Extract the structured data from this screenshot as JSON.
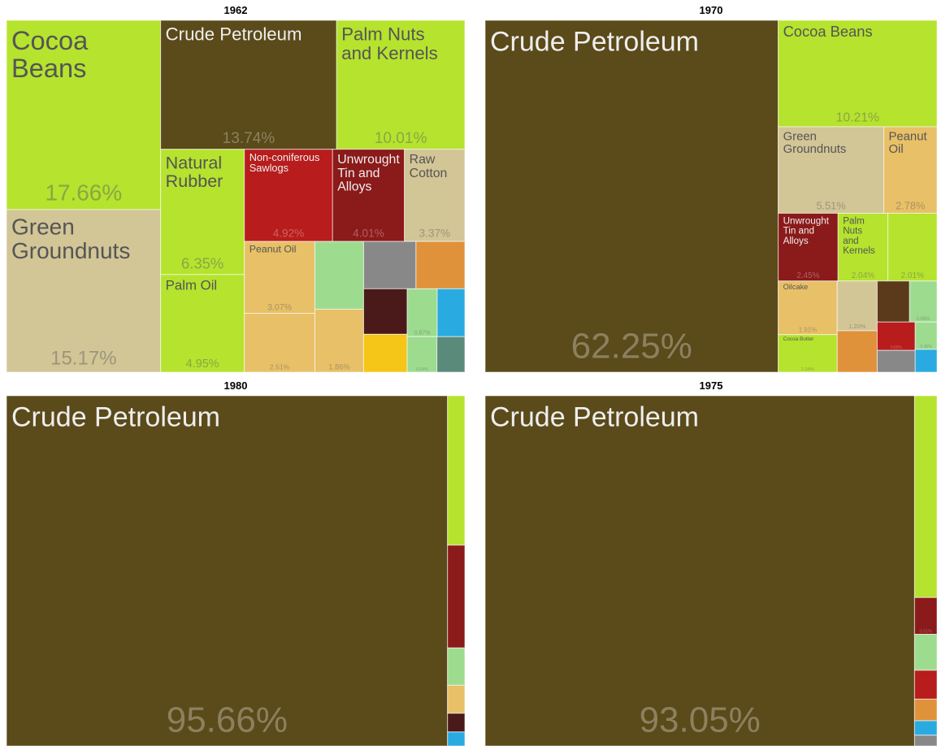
{
  "chart_data": [
    {
      "type": "treemap",
      "title": "1962",
      "items": [
        {
          "name": "Cocoa Beans",
          "value": 17.66,
          "value_label": "17.66%",
          "color": "#b5e32e"
        },
        {
          "name": "Green Groundnuts",
          "value": 15.17,
          "value_label": "15.17%",
          "color": "#d2c596"
        },
        {
          "name": "Crude Petroleum",
          "value": 13.74,
          "value_label": "13.74%",
          "color": "#5b4a1a"
        },
        {
          "name": "Palm Nuts and Kernels",
          "value": 10.01,
          "value_label": "10.01%",
          "color": "#b5e32e"
        },
        {
          "name": "Natural Rubber",
          "value": 6.35,
          "value_label": "6.35%",
          "color": "#b5e32e"
        },
        {
          "name": "Palm Oil",
          "value": 4.95,
          "value_label": "4.95%",
          "color": "#b5e32e"
        },
        {
          "name": "Non-coniferous Sawlogs",
          "value": 4.92,
          "value_label": "4.92%",
          "color": "#b81c1c"
        },
        {
          "name": "Unwrought Tin and Alloys",
          "value": 4.01,
          "value_label": "4.01%",
          "color": "#8b1a1a"
        },
        {
          "name": "Raw Cotton",
          "value": 3.37,
          "value_label": "3.37%",
          "color": "#d2c596"
        },
        {
          "name": "Peanut Oil",
          "value": 3.07,
          "value_label": "3.07%",
          "color": "#e8c067"
        },
        {
          "value": 2.51,
          "value_label": "2.51%",
          "color": "#e8c067"
        },
        {
          "value": 2.0,
          "color": "#9ddc8f"
        },
        {
          "value": 1.86,
          "value_label": "1.86%",
          "color": "#e8c067"
        },
        {
          "value": 1.5,
          "color": "#888888"
        },
        {
          "value": 1.4,
          "color": "#e0923a"
        },
        {
          "value": 1.2,
          "color": "#4a1a1a"
        },
        {
          "value": 1.0,
          "color": "#f5c518"
        },
        {
          "value": 0.87,
          "value_label": "0.87%",
          "color": "#9ddc8f"
        },
        {
          "value": 0.8,
          "color": "#29abe2"
        },
        {
          "value": 0.64,
          "value_label": "0.64%",
          "color": "#9ddc8f"
        },
        {
          "value": 0.6,
          "color": "#5a8a7a"
        }
      ]
    },
    {
      "type": "treemap",
      "title": "1970",
      "items": [
        {
          "name": "Crude Petroleum",
          "value": 62.25,
          "value_label": "62.25%",
          "color": "#5b4a1a"
        },
        {
          "name": "Cocoa Beans",
          "value": 10.21,
          "value_label": "10.21%",
          "color": "#b5e32e"
        },
        {
          "name": "Green Groundnuts",
          "value": 5.51,
          "value_label": "5.51%",
          "color": "#d2c596"
        },
        {
          "name": "Peanut Oil",
          "value": 2.78,
          "value_label": "2.78%",
          "color": "#e8c067"
        },
        {
          "name": "Unwrought Tin and Alloys",
          "value": 2.45,
          "value_label": "2.45%",
          "color": "#8b1a1a"
        },
        {
          "name": "Palm Nuts and Kernels",
          "value": 2.04,
          "value_label": "2.04%",
          "color": "#b5e32e"
        },
        {
          "value": 2.01,
          "value_label": "2.01%",
          "color": "#b5e32e"
        },
        {
          "name": "Oilcake",
          "value": 1.91,
          "value_label": "1.91%",
          "color": "#e8c067"
        },
        {
          "name": "Cocoa Butter",
          "value": 1.34,
          "value_label": "1.34%",
          "color": "#b5e32e"
        },
        {
          "value": 1.2,
          "value_label": "1.20%",
          "color": "#d2c596"
        },
        {
          "value": 1.0,
          "color": "#e0923a"
        },
        {
          "value": 0.8,
          "color": "#5a3a1a"
        },
        {
          "value": 0.68,
          "value_label": "0.68%",
          "color": "#9ddc8f"
        },
        {
          "value": 0.65,
          "value_label": "0.65%",
          "color": "#b81c1c"
        },
        {
          "value": 0.5,
          "color": "#888888"
        },
        {
          "value": 0.36,
          "value_label": "0.36%",
          "color": "#9ddc8f"
        },
        {
          "value": 0.3,
          "color": "#29abe2"
        }
      ]
    },
    {
      "type": "treemap",
      "title": "1980",
      "items": [
        {
          "name": "Crude Petroleum",
          "value": 95.66,
          "value_label": "95.66%",
          "color": "#5b4a1a"
        },
        {
          "value": 1.6,
          "color": "#b5e32e"
        },
        {
          "value": 1.1,
          "color": "#8b1a1a"
        },
        {
          "value": 0.4,
          "color": "#9ddc8f"
        },
        {
          "value": 0.3,
          "color": "#e8c067"
        },
        {
          "value": 0.2,
          "color": "#4a1a1a"
        },
        {
          "value": 0.15,
          "color": "#29abe2"
        }
      ]
    },
    {
      "type": "treemap",
      "title": "1975",
      "items": [
        {
          "name": "Crude Petroleum",
          "value": 93.05,
          "value_label": "93.05%",
          "color": "#5b4a1a"
        },
        {
          "value": 2.8,
          "color": "#b5e32e"
        },
        {
          "value": 0.51,
          "value_label": "0.51%",
          "color": "#8b1a1a"
        },
        {
          "value": 0.5,
          "color": "#9ddc8f"
        },
        {
          "value": 0.4,
          "color": "#b81c1c"
        },
        {
          "value": 0.3,
          "color": "#e0923a"
        },
        {
          "value": 0.2,
          "color": "#29abe2"
        },
        {
          "value": 0.15,
          "color": "#888888"
        }
      ]
    }
  ]
}
